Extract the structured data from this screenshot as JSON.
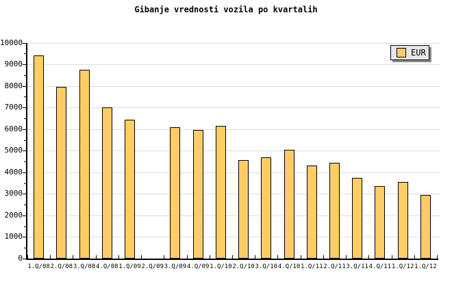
{
  "title": "Gibanje vrednosti vozila po kvartalih",
  "legend": {
    "label": "EUR",
    "swatch_color": "#FFCC66"
  },
  "colors": {
    "background": "#FFFFFF",
    "bar_fill": "#FFCC66",
    "bar_border": "#000000",
    "grid": "#DCDCDC",
    "axis": "#000000",
    "legend_bg": "#E6E6E6",
    "legend_shadow": "#8C8C8C",
    "text": "#000000"
  },
  "chart_data": {
    "type": "bar",
    "title": "Gibanje vrednosti vozila po kvartalih",
    "xlabel": "",
    "ylabel": "",
    "categories": [
      "1.Q/08",
      "2.Q/08",
      "3.Q/08",
      "4.Q/08",
      "1.Q/09",
      "2.Q/09",
      "3.Q/09",
      "4.Q/09",
      "1.Q/10",
      "2.Q/10",
      "3.Q/10",
      "4.Q/10",
      "1.Q/11",
      "2.Q/11",
      "3.Q/11",
      "4.Q/11",
      "1.Q/12",
      "1.Q/12"
    ],
    "series": [
      {
        "name": "EUR",
        "values": [
          9400,
          7950,
          8750,
          7000,
          6450,
          null,
          6100,
          5950,
          6150,
          4550,
          4700,
          5050,
          4300,
          4450,
          3750,
          3350,
          3550,
          2950
        ]
      }
    ],
    "ylim": [
      0,
      10000
    ],
    "y_tick_interval": 1000,
    "y_minor_tick_interval": 500,
    "y_tick_labels": [
      "0",
      "1000",
      "2000",
      "3000",
      "4000",
      "5000",
      "6000",
      "7000",
      "8000",
      "9000",
      "10000"
    ],
    "grid": "horizontal",
    "legend_position": "top-right",
    "note": "no bar rendered for 2.Q/09; last category label duplicated as 1.Q/12"
  }
}
